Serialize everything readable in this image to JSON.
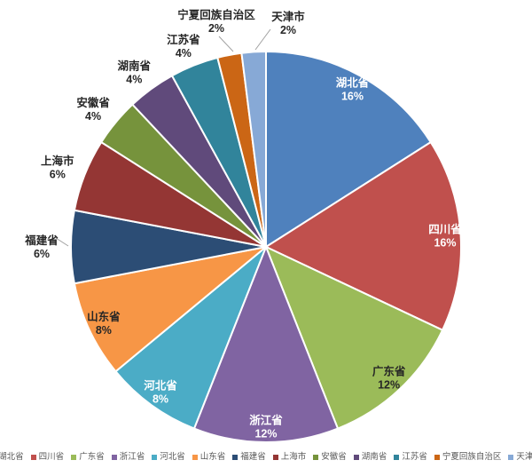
{
  "chart_data": {
    "type": "pie",
    "title": "",
    "unit": "%",
    "legend_position": "bottom",
    "start_angle_deg": 0,
    "direction": "clockwise",
    "slices": [
      {
        "label": "湖北省",
        "value": 16,
        "percent_label": "16%",
        "color": "#4F81BD",
        "label_placement": "inside",
        "label_color": "#FFFFFF"
      },
      {
        "label": "四川省",
        "value": 16,
        "percent_label": "16%",
        "color": "#C0504D",
        "label_placement": "inside",
        "label_color": "#FFFFFF"
      },
      {
        "label": "广东省",
        "value": 12,
        "percent_label": "12%",
        "color": "#9BBB59",
        "label_placement": "inside",
        "label_color": "#262626"
      },
      {
        "label": "浙江省",
        "value": 12,
        "percent_label": "12%",
        "color": "#8064A2",
        "label_placement": "inside",
        "label_color": "#FFFFFF"
      },
      {
        "label": "河北省",
        "value": 8,
        "percent_label": "8%",
        "color": "#4BACC6",
        "label_placement": "inside",
        "label_color": "#FFFFFF"
      },
      {
        "label": "山东省",
        "value": 8,
        "percent_label": "8%",
        "color": "#F79646",
        "label_placement": "inside",
        "label_color": "#262626"
      },
      {
        "label": "福建省",
        "value": 6,
        "percent_label": "6%",
        "color": "#2C4D75",
        "label_placement": "outside",
        "label_color": "#262626"
      },
      {
        "label": "上海市",
        "value": 6,
        "percent_label": "6%",
        "color": "#943634",
        "label_placement": "outside",
        "label_color": "#262626"
      },
      {
        "label": "安徽省",
        "value": 4,
        "percent_label": "4%",
        "color": "#76933C",
        "label_placement": "outside",
        "label_color": "#262626"
      },
      {
        "label": "湖南省",
        "value": 4,
        "percent_label": "4%",
        "color": "#604A7B",
        "label_placement": "outside",
        "label_color": "#262626"
      },
      {
        "label": "江苏省",
        "value": 4,
        "percent_label": "4%",
        "color": "#31849B",
        "label_placement": "outside",
        "label_color": "#262626"
      },
      {
        "label": "宁夏回族自治区",
        "value": 2,
        "percent_label": "2%",
        "color": "#CB6615",
        "label_placement": "outside-leader",
        "label_color": "#262626"
      },
      {
        "label": "天津市",
        "value": 2,
        "percent_label": "2%",
        "color": "#87A9D6",
        "label_placement": "outside-leader",
        "label_color": "#262626"
      }
    ]
  }
}
